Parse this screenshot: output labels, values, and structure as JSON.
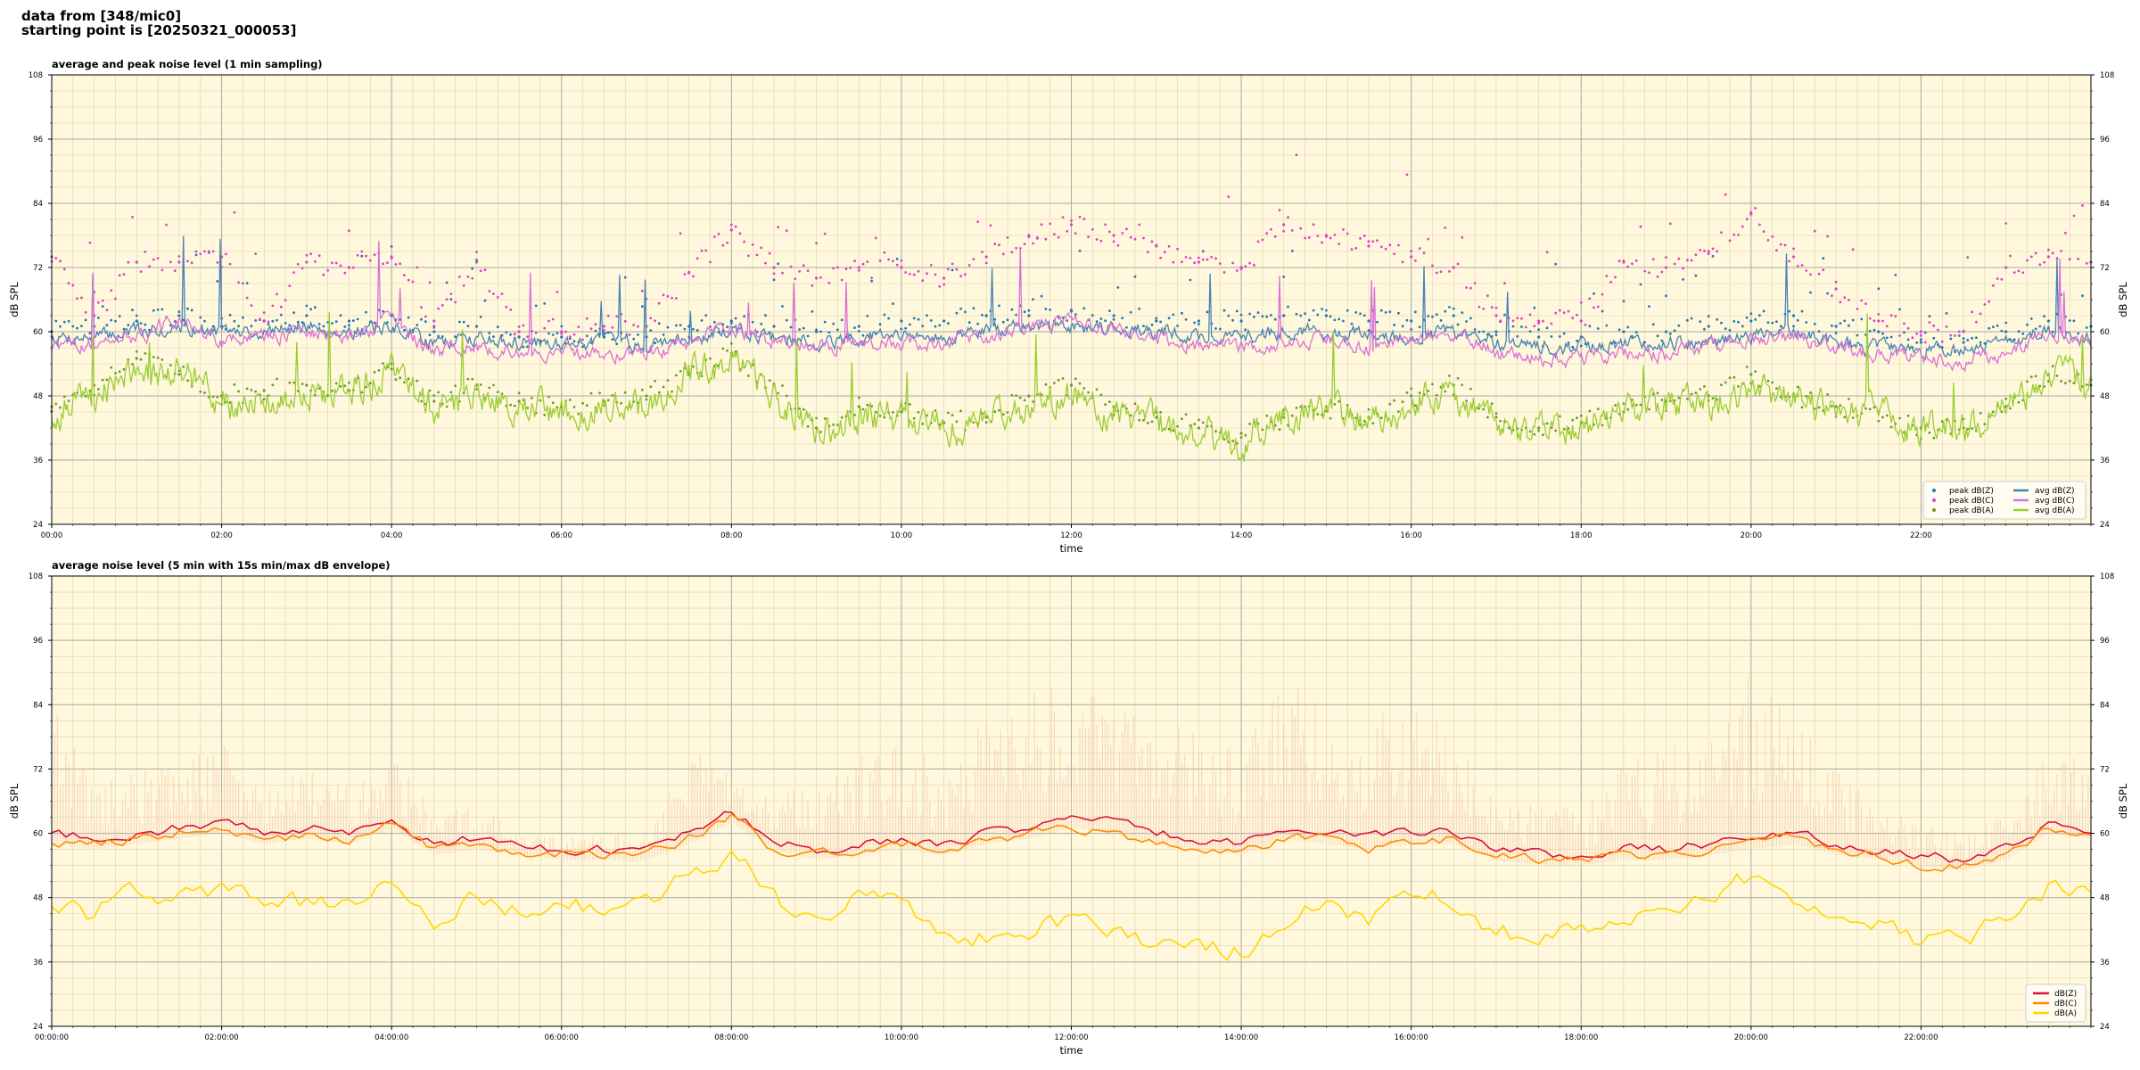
{
  "header": {
    "line1": "data from [348/mic0]",
    "line2": "starting point is [20250321_000053]"
  },
  "colors": {
    "background": "#fff8dc",
    "peak_z": "#1f77b4",
    "peak_c": "#e040c8",
    "peak_a": "#6a9a2a",
    "avg_z": "#4682b4",
    "avg_c": "#da70d6",
    "avg_a": "#9acd32",
    "dbz": "#dc143c",
    "dbc": "#ff8c00",
    "dba": "#ffd700",
    "envelope": "#f4c0a8"
  },
  "chart_data": [
    {
      "type": "line",
      "title": "average and peak noise level (1 min sampling)",
      "xlabel": "time",
      "ylabel": "dB SPL",
      "ylim": [
        24,
        108
      ],
      "xlim": [
        0,
        24
      ],
      "x_unit": "hours",
      "yticks": [
        24,
        36,
        48,
        60,
        72,
        84,
        96,
        108
      ],
      "xticklabels": [
        "00:00",
        "02:00",
        "04:00",
        "06:00",
        "08:00",
        "10:00",
        "12:00",
        "14:00",
        "16:00",
        "18:00",
        "20:00",
        "22:00"
      ],
      "grid": true,
      "legend_position": "lower-right",
      "legend_columns": 2,
      "x": [
        0,
        0.5,
        1,
        1.5,
        2,
        2.5,
        3,
        3.5,
        4,
        4.5,
        5,
        5.5,
        6,
        6.5,
        7,
        7.5,
        8,
        8.5,
        9,
        9.5,
        10,
        10.5,
        11,
        11.5,
        12,
        12.5,
        13,
        13.5,
        14,
        14.5,
        15,
        15.5,
        16,
        16.5,
        17,
        17.5,
        18,
        18.5,
        19,
        19.5,
        20,
        20.5,
        21,
        21.5,
        22,
        22.5,
        23,
        23.5,
        24
      ],
      "series": [
        {
          "name": "peak dB(Z)",
          "kind": "scatter",
          "color_key": "peak_z",
          "values": [
            60,
            61,
            62,
            63,
            61,
            62,
            63,
            62,
            63,
            60,
            61,
            59,
            59,
            59,
            59,
            61,
            62,
            61,
            60,
            61,
            62,
            62,
            63,
            63,
            64,
            63,
            62,
            62,
            62,
            63,
            63,
            62,
            62,
            63,
            60,
            59,
            59,
            60,
            60,
            61,
            62,
            63,
            61,
            60,
            58,
            58,
            60,
            62,
            61
          ]
        },
        {
          "name": "peak dB(C)",
          "kind": "scatter",
          "color_key": "peak_c",
          "values": [
            74,
            63,
            73,
            73,
            74,
            62,
            73,
            72,
            74,
            62,
            73,
            60,
            60,
            61,
            61,
            71,
            79,
            72,
            70,
            72,
            72,
            70,
            74,
            78,
            80,
            78,
            76,
            73,
            72,
            80,
            78,
            76,
            74,
            72,
            63,
            62,
            62,
            73,
            72,
            75,
            82,
            74,
            68,
            62,
            60,
            60,
            72,
            74,
            73
          ]
        },
        {
          "name": "peak dB(A)",
          "kind": "scatter",
          "color_key": "peak_a",
          "values": [
            46,
            50,
            55,
            52,
            48,
            49,
            50,
            49,
            53,
            47,
            50,
            47,
            46,
            47,
            48,
            52,
            56,
            50,
            42,
            46,
            45,
            43,
            44,
            48,
            50,
            46,
            44,
            42,
            41,
            44,
            46,
            44,
            48,
            50,
            44,
            42,
            43,
            45,
            47,
            48,
            52,
            48,
            46,
            45,
            42,
            42,
            46,
            52,
            50
          ]
        },
        {
          "name": "avg dB(Z)",
          "kind": "line",
          "color_key": "avg_z",
          "values": [
            59,
            59,
            60,
            61,
            60,
            60,
            61,
            60,
            61,
            58,
            59,
            58,
            58,
            58,
            58,
            59,
            60,
            59,
            58,
            59,
            59,
            59,
            60,
            61,
            61,
            61,
            60,
            59,
            59,
            60,
            60,
            59,
            59,
            60,
            58,
            57,
            57,
            58,
            58,
            58,
            59,
            60,
            58,
            57,
            57,
            57,
            58,
            60,
            59
          ]
        },
        {
          "name": "avg dB(C)",
          "kind": "line",
          "color_key": "avg_c",
          "values": [
            57,
            58,
            59,
            62,
            58,
            59,
            60,
            59,
            62,
            56,
            57,
            56,
            56,
            56,
            56,
            58,
            61,
            58,
            57,
            58,
            58,
            58,
            59,
            61,
            62,
            60,
            59,
            57,
            57,
            58,
            59,
            57,
            58,
            60,
            56,
            55,
            55,
            56,
            56,
            57,
            59,
            59,
            57,
            56,
            55,
            54,
            56,
            60,
            58
          ]
        },
        {
          "name": "avg dB(A)",
          "kind": "line",
          "color_key": "avg_a",
          "values": [
            45,
            48,
            52,
            53,
            46,
            47,
            49,
            48,
            53,
            45,
            48,
            46,
            45,
            46,
            46,
            52,
            55,
            48,
            41,
            44,
            44,
            42,
            43,
            47,
            48,
            45,
            43,
            41,
            39,
            43,
            45,
            43,
            47,
            49,
            42,
            41,
            42,
            44,
            46,
            47,
            50,
            47,
            45,
            44,
            42,
            42,
            46,
            52,
            50
          ]
        }
      ]
    },
    {
      "type": "line",
      "title": "average noise level (5 min with 15s min/max dB envelope)",
      "xlabel": "time",
      "ylabel": "dB SPL",
      "ylim": [
        24,
        108
      ],
      "xlim": [
        0,
        24
      ],
      "x_unit": "hours",
      "yticks": [
        24,
        36,
        48,
        60,
        72,
        84,
        96,
        108
      ],
      "xticklabels": [
        "00:00:00",
        "02:00:00",
        "04:00:00",
        "06:00:00",
        "08:00:00",
        "10:00:00",
        "12:00:00",
        "14:00:00",
        "16:00:00",
        "18:00:00",
        "20:00:00",
        "22:00:00"
      ],
      "grid": true,
      "legend_position": "lower-right",
      "legend_columns": 1,
      "x": [
        0,
        0.5,
        1,
        1.5,
        2,
        2.5,
        3,
        3.5,
        4,
        4.5,
        5,
        5.5,
        6,
        6.5,
        7,
        7.5,
        8,
        8.5,
        9,
        9.5,
        10,
        10.5,
        11,
        11.5,
        12,
        12.5,
        13,
        13.5,
        14,
        14.5,
        15,
        15.5,
        16,
        16.5,
        17,
        17.5,
        18,
        18.5,
        19,
        19.5,
        20,
        20.5,
        21,
        21.5,
        22,
        22.5,
        23,
        23.5,
        24
      ],
      "envelope_max": [
        88,
        70,
        72,
        74,
        78,
        68,
        72,
        70,
        76,
        64,
        66,
        60,
        59,
        60,
        60,
        75,
        74,
        70,
        68,
        76,
        78,
        72,
        82,
        86,
        88,
        84,
        82,
        80,
        78,
        88,
        86,
        82,
        84,
        80,
        68,
        66,
        64,
        74,
        76,
        80,
        90,
        82,
        72,
        66,
        62,
        60,
        64,
        76,
        74
      ],
      "series": [
        {
          "name": "dB(Z)",
          "kind": "line",
          "color_key": "dbz",
          "values": [
            60,
            59,
            60,
            61,
            62,
            60,
            61,
            60,
            63,
            58,
            59,
            58,
            57,
            57,
            57,
            60,
            64,
            59,
            57,
            58,
            59,
            58,
            60,
            61,
            63,
            62,
            60,
            59,
            58,
            61,
            60,
            59,
            60,
            60,
            57,
            56,
            56,
            57,
            57,
            58,
            59,
            60,
            58,
            57,
            56,
            55,
            57,
            62,
            61
          ]
        },
        {
          "name": "dB(C)",
          "kind": "line",
          "color_key": "dbc",
          "values": [
            58,
            58,
            59,
            60,
            61,
            58,
            60,
            58,
            62,
            57,
            57,
            56,
            56,
            56,
            56,
            59,
            63,
            57,
            56,
            57,
            58,
            57,
            58,
            60,
            61,
            60,
            58,
            57,
            56,
            59,
            59,
            57,
            58,
            59,
            56,
            55,
            55,
            56,
            56,
            57,
            58,
            59,
            57,
            56,
            54,
            54,
            56,
            61,
            59
          ]
        },
        {
          "name": "dB(A)",
          "kind": "line",
          "color_key": "dba",
          "values": [
            46,
            45,
            49,
            48,
            50,
            46,
            47,
            46,
            52,
            44,
            48,
            46,
            46,
            46,
            46,
            52,
            57,
            48,
            42,
            50,
            48,
            40,
            40,
            42,
            44,
            42,
            40,
            39,
            38,
            44,
            47,
            43,
            48,
            48,
            42,
            40,
            42,
            44,
            47,
            49,
            52,
            46,
            44,
            43,
            40,
            40,
            44,
            50,
            49
          ]
        }
      ]
    }
  ]
}
